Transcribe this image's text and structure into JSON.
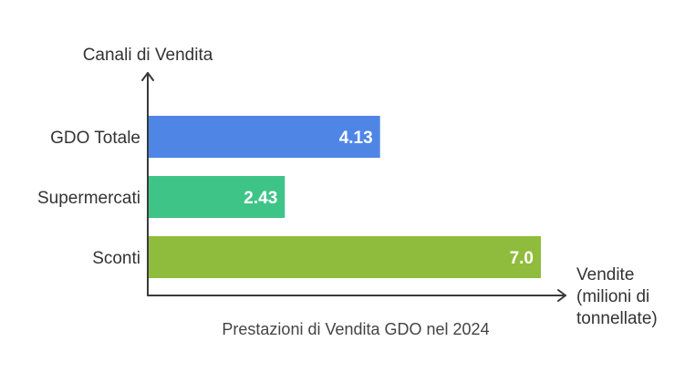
{
  "chart_data": {
    "type": "bar",
    "orientation": "horizontal",
    "title": "Prestazioni di Vendita GDO nel 2024",
    "ylabel": "Canali di Vendita",
    "xlabel_lines": [
      "Vendite",
      "(milioni di",
      "tonnellate)"
    ],
    "categories": [
      "GDO Totale",
      "Supermercati",
      "Sconti"
    ],
    "values": [
      4.13,
      2.43,
      7.0
    ],
    "value_labels": [
      "4.13",
      "2.43",
      "7.0"
    ],
    "colors": [
      "#4f86e6",
      "#3ec487",
      "#8fbc3c"
    ],
    "xlim": [
      0,
      7.0
    ],
    "grid": false,
    "legend": "none"
  }
}
